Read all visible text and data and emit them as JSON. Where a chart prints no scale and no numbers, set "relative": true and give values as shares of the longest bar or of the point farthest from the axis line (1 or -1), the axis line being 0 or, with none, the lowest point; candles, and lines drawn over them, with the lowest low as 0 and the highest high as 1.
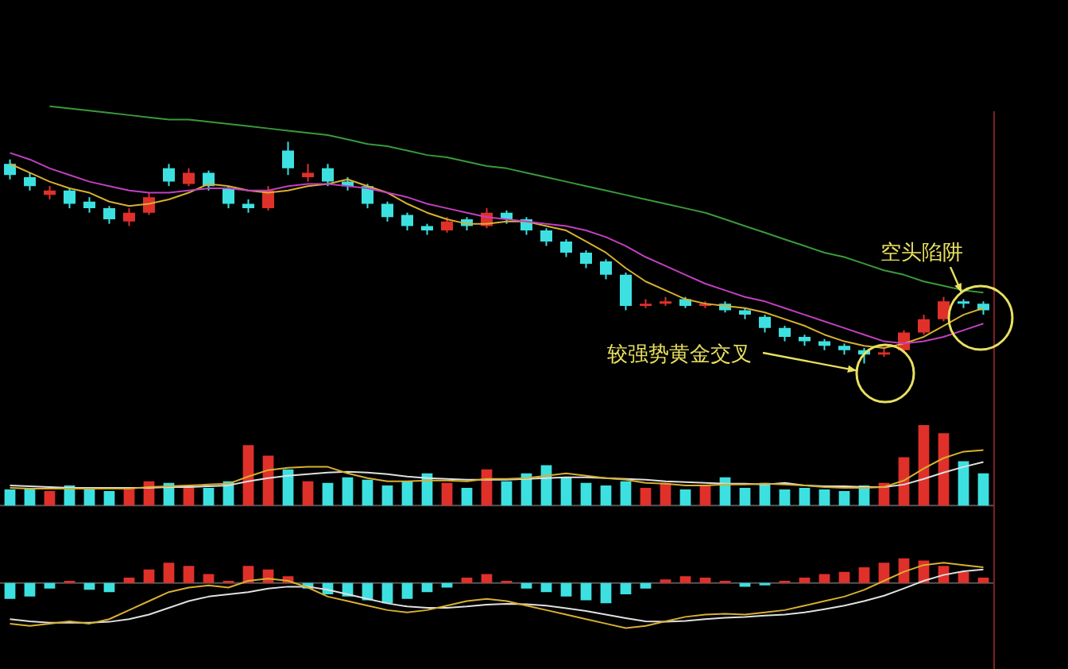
{
  "chart_data": [
    {
      "type": "candlestick",
      "relative": true,
      "legend": false,
      "categories": [
        null,
        null,
        null,
        null,
        null,
        null,
        null,
        null,
        null,
        null,
        null,
        null,
        null,
        null,
        null,
        null,
        null,
        null,
        null,
        null,
        null,
        null,
        null,
        null,
        null,
        null,
        null,
        null,
        null,
        null,
        null,
        null,
        null,
        null,
        null,
        null,
        null,
        null,
        null,
        null,
        null,
        null,
        null,
        null,
        null,
        null,
        null,
        null,
        null,
        null
      ],
      "ohlc": [
        [
          0.9,
          0.92,
          0.83,
          0.85
        ],
        [
          0.84,
          0.86,
          0.78,
          0.8
        ],
        [
          0.76,
          0.8,
          0.74,
          0.78
        ],
        [
          0.78,
          0.79,
          0.7,
          0.72
        ],
        [
          0.73,
          0.75,
          0.68,
          0.7
        ],
        [
          0.7,
          0.71,
          0.63,
          0.65
        ],
        [
          0.64,
          0.7,
          0.62,
          0.68
        ],
        [
          0.68,
          0.77,
          0.67,
          0.75
        ],
        [
          0.88,
          0.9,
          0.8,
          0.82
        ],
        [
          0.81,
          0.88,
          0.8,
          0.86
        ],
        [
          0.86,
          0.87,
          0.78,
          0.8
        ],
        [
          0.79,
          0.8,
          0.7,
          0.72
        ],
        [
          0.72,
          0.74,
          0.68,
          0.7
        ],
        [
          0.7,
          0.8,
          0.69,
          0.78
        ],
        [
          0.96,
          1.0,
          0.85,
          0.88
        ],
        [
          0.84,
          0.9,
          0.82,
          0.86
        ],
        [
          0.88,
          0.9,
          0.8,
          0.82
        ],
        [
          0.82,
          0.84,
          0.78,
          0.8
        ],
        [
          0.8,
          0.81,
          0.7,
          0.72
        ],
        [
          0.72,
          0.73,
          0.64,
          0.66
        ],
        [
          0.67,
          0.68,
          0.6,
          0.62
        ],
        [
          0.62,
          0.63,
          0.58,
          0.6
        ],
        [
          0.6,
          0.66,
          0.59,
          0.64
        ],
        [
          0.65,
          0.66,
          0.6,
          0.62
        ],
        [
          0.62,
          0.7,
          0.61,
          0.68
        ],
        [
          0.68,
          0.69,
          0.63,
          0.65
        ],
        [
          0.65,
          0.66,
          0.58,
          0.6
        ],
        [
          0.6,
          0.61,
          0.53,
          0.55
        ],
        [
          0.55,
          0.56,
          0.48,
          0.5
        ],
        [
          0.5,
          0.51,
          0.43,
          0.45
        ],
        [
          0.46,
          0.47,
          0.38,
          0.4
        ],
        [
          0.4,
          0.41,
          0.24,
          0.26
        ],
        [
          0.26,
          0.29,
          0.25,
          0.27
        ],
        [
          0.27,
          0.3,
          0.26,
          0.28
        ],
        [
          0.29,
          0.3,
          0.25,
          0.26
        ],
        [
          0.26,
          0.28,
          0.25,
          0.27
        ],
        [
          0.27,
          0.28,
          0.23,
          0.24
        ],
        [
          0.24,
          0.25,
          0.2,
          0.22
        ],
        [
          0.21,
          0.22,
          0.14,
          0.16
        ],
        [
          0.16,
          0.17,
          0.1,
          0.12
        ],
        [
          0.12,
          0.13,
          0.08,
          0.1
        ],
        [
          0.1,
          0.11,
          0.06,
          0.08
        ],
        [
          0.08,
          0.09,
          0.04,
          0.06
        ],
        [
          0.06,
          0.07,
          0.0,
          0.04
        ],
        [
          0.04,
          0.07,
          0.03,
          0.05
        ],
        [
          0.06,
          0.15,
          0.05,
          0.14
        ],
        [
          0.14,
          0.22,
          0.13,
          0.2
        ],
        [
          0.2,
          0.3,
          0.19,
          0.28
        ],
        [
          0.28,
          0.29,
          0.25,
          0.27
        ],
        [
          0.27,
          0.28,
          0.22,
          0.24
        ]
      ],
      "colors": [
        "#3de0e0",
        "#3de0e0",
        "#e0302a",
        "#3de0e0",
        "#3de0e0",
        "#3de0e0",
        "#e0302a",
        "#e0302a",
        "#3de0e0",
        "#e0302a",
        "#3de0e0",
        "#3de0e0",
        "#3de0e0",
        "#e0302a",
        "#3de0e0",
        "#e0302a",
        "#3de0e0",
        "#3de0e0",
        "#3de0e0",
        "#3de0e0",
        "#3de0e0",
        "#3de0e0",
        "#e0302a",
        "#3de0e0",
        "#e0302a",
        "#3de0e0",
        "#3de0e0",
        "#3de0e0",
        "#3de0e0",
        "#3de0e0",
        "#3de0e0",
        "#3de0e0",
        "#e0302a",
        "#e0302a",
        "#3de0e0",
        "#e0302a",
        "#3de0e0",
        "#3de0e0",
        "#3de0e0",
        "#3de0e0",
        "#3de0e0",
        "#3de0e0",
        "#3de0e0",
        "#3de0e0",
        "#e0302a",
        "#e0302a",
        "#e0302a",
        "#e0302a",
        "#3de0e0",
        "#3de0e0"
      ],
      "series": [
        {
          "type": "line",
          "color": "#3a9a3a",
          "values": [
            null,
            null,
            1.16,
            1.15,
            1.14,
            1.13,
            1.12,
            1.11,
            1.1,
            1.1,
            1.09,
            1.08,
            1.07,
            1.06,
            1.05,
            1.04,
            1.03,
            1.01,
            0.99,
            0.98,
            0.96,
            0.94,
            0.93,
            0.91,
            0.89,
            0.88,
            0.86,
            0.84,
            0.82,
            0.8,
            0.78,
            0.76,
            0.74,
            0.72,
            0.7,
            0.68,
            0.65,
            0.62,
            0.59,
            0.56,
            0.53,
            0.5,
            0.48,
            0.45,
            0.42,
            0.4,
            0.37,
            0.35,
            0.33,
            0.32
          ]
        },
        {
          "type": "line",
          "color": "#c040c0",
          "values": [
            0.95,
            0.92,
            0.88,
            0.85,
            0.82,
            0.8,
            0.78,
            0.77,
            0.77,
            0.78,
            0.79,
            0.79,
            0.78,
            0.78,
            0.8,
            0.81,
            0.81,
            0.8,
            0.79,
            0.77,
            0.75,
            0.72,
            0.7,
            0.68,
            0.66,
            0.65,
            0.64,
            0.63,
            0.62,
            0.6,
            0.57,
            0.53,
            0.48,
            0.44,
            0.4,
            0.36,
            0.33,
            0.3,
            0.28,
            0.25,
            0.22,
            0.19,
            0.16,
            0.13,
            0.1,
            0.09,
            0.1,
            0.12,
            0.15,
            0.18
          ]
        },
        {
          "type": "line",
          "color": "#d8b030",
          "values": [
            0.9,
            0.86,
            0.82,
            0.79,
            0.77,
            0.73,
            0.71,
            0.72,
            0.74,
            0.77,
            0.81,
            0.8,
            0.78,
            0.77,
            0.78,
            0.8,
            0.81,
            0.83,
            0.8,
            0.77,
            0.72,
            0.68,
            0.65,
            0.63,
            0.63,
            0.64,
            0.64,
            0.62,
            0.6,
            0.55,
            0.5,
            0.43,
            0.37,
            0.33,
            0.29,
            0.27,
            0.26,
            0.25,
            0.23,
            0.2,
            0.17,
            0.13,
            0.1,
            0.08,
            0.07,
            0.09,
            0.12,
            0.17,
            0.22,
            0.25
          ]
        }
      ],
      "annotations": [
        "较强势黄金交叉",
        "空头陷阱"
      ]
    },
    {
      "type": "bar",
      "relative": true,
      "legend": false,
      "categories": [
        null,
        null,
        null,
        null,
        null,
        null,
        null,
        null,
        null,
        null,
        null,
        null,
        null,
        null,
        null,
        null,
        null,
        null,
        null,
        null,
        null,
        null,
        null,
        null,
        null,
        null,
        null,
        null,
        null,
        null,
        null,
        null,
        null,
        null,
        null,
        null,
        null,
        null,
        null,
        null,
        null,
        null,
        null,
        null,
        null,
        null,
        null,
        null,
        null,
        null
      ],
      "values": [
        0.2,
        0.22,
        0.18,
        0.25,
        0.2,
        0.18,
        0.22,
        0.3,
        0.28,
        0.25,
        0.22,
        0.3,
        0.75,
        0.62,
        0.45,
        0.3,
        0.28,
        0.35,
        0.32,
        0.25,
        0.3,
        0.4,
        0.28,
        0.22,
        0.45,
        0.3,
        0.4,
        0.5,
        0.35,
        0.28,
        0.25,
        0.3,
        0.22,
        0.28,
        0.2,
        0.25,
        0.35,
        0.22,
        0.28,
        0.2,
        0.22,
        0.2,
        0.18,
        0.25,
        0.28,
        0.6,
        1.0,
        0.9,
        0.55,
        0.4
      ],
      "colors": [
        "#3de0e0",
        "#3de0e0",
        "#e0302a",
        "#3de0e0",
        "#3de0e0",
        "#3de0e0",
        "#e0302a",
        "#e0302a",
        "#3de0e0",
        "#e0302a",
        "#3de0e0",
        "#3de0e0",
        "#e0302a",
        "#e0302a",
        "#3de0e0",
        "#e0302a",
        "#3de0e0",
        "#3de0e0",
        "#3de0e0",
        "#3de0e0",
        "#3de0e0",
        "#3de0e0",
        "#e0302a",
        "#3de0e0",
        "#e0302a",
        "#3de0e0",
        "#3de0e0",
        "#3de0e0",
        "#3de0e0",
        "#3de0e0",
        "#3de0e0",
        "#3de0e0",
        "#e0302a",
        "#e0302a",
        "#3de0e0",
        "#e0302a",
        "#3de0e0",
        "#3de0e0",
        "#3de0e0",
        "#3de0e0",
        "#3de0e0",
        "#3de0e0",
        "#3de0e0",
        "#3de0e0",
        "#e0302a",
        "#e0302a",
        "#e0302a",
        "#e0302a",
        "#3de0e0",
        "#3de0e0"
      ],
      "series": [
        {
          "type": "line",
          "color": "#d8b030",
          "values": [
            0.22,
            0.21,
            0.21,
            0.21,
            0.21,
            0.21,
            0.21,
            0.23,
            0.24,
            0.25,
            0.26,
            0.27,
            0.36,
            0.44,
            0.47,
            0.48,
            0.48,
            0.4,
            0.34,
            0.3,
            0.3,
            0.31,
            0.31,
            0.3,
            0.33,
            0.33,
            0.34,
            0.37,
            0.4,
            0.37,
            0.34,
            0.32,
            0.28,
            0.27,
            0.25,
            0.25,
            0.26,
            0.26,
            0.27,
            0.26,
            0.25,
            0.23,
            0.22,
            0.22,
            0.23,
            0.31,
            0.46,
            0.59,
            0.67,
            0.69
          ]
        },
        {
          "type": "line",
          "color": "#e0e0e0",
          "values": [
            0.25,
            0.24,
            0.23,
            0.22,
            0.22,
            0.22,
            0.22,
            0.22,
            0.23,
            0.23,
            0.24,
            0.25,
            0.3,
            0.34,
            0.37,
            0.39,
            0.41,
            0.42,
            0.41,
            0.39,
            0.36,
            0.34,
            0.33,
            0.32,
            0.32,
            0.32,
            0.33,
            0.34,
            0.35,
            0.35,
            0.34,
            0.33,
            0.32,
            0.3,
            0.29,
            0.28,
            0.27,
            0.27,
            0.26,
            0.28,
            0.25,
            0.24,
            0.24,
            0.23,
            0.23,
            0.26,
            0.33,
            0.41,
            0.48,
            0.54
          ]
        }
      ]
    },
    {
      "type": "bar",
      "relative": true,
      "legend": false,
      "categories": [
        null,
        null,
        null,
        null,
        null,
        null,
        null,
        null,
        null,
        null,
        null,
        null,
        null,
        null,
        null,
        null,
        null,
        null,
        null,
        null,
        null,
        null,
        null,
        null,
        null,
        null,
        null,
        null,
        null,
        null,
        null,
        null,
        null,
        null,
        null,
        null,
        null,
        null,
        null,
        null,
        null,
        null,
        null,
        null,
        null,
        null,
        null,
        null,
        null,
        null
      ],
      "values": [
        -0.35,
        -0.3,
        -0.12,
        0.05,
        -0.15,
        -0.2,
        0.12,
        0.3,
        0.45,
        0.38,
        0.2,
        0.05,
        0.38,
        0.3,
        0.15,
        -0.12,
        -0.25,
        -0.3,
        -0.38,
        -0.45,
        -0.35,
        -0.2,
        -0.1,
        0.12,
        0.2,
        0.05,
        -0.12,
        -0.2,
        -0.3,
        -0.38,
        -0.45,
        -0.25,
        -0.12,
        0.08,
        0.15,
        0.12,
        0.05,
        -0.08,
        -0.05,
        0.05,
        0.12,
        0.2,
        0.25,
        0.35,
        0.45,
        0.55,
        0.5,
        0.38,
        0.25,
        0.12
      ],
      "colors": [
        "#3de0e0",
        "#3de0e0",
        "#3de0e0",
        "#e0302a",
        "#3de0e0",
        "#3de0e0",
        "#e0302a",
        "#e0302a",
        "#e0302a",
        "#e0302a",
        "#e0302a",
        "#e0302a",
        "#e0302a",
        "#e0302a",
        "#e0302a",
        "#3de0e0",
        "#3de0e0",
        "#3de0e0",
        "#3de0e0",
        "#3de0e0",
        "#3de0e0",
        "#3de0e0",
        "#3de0e0",
        "#e0302a",
        "#e0302a",
        "#e0302a",
        "#3de0e0",
        "#3de0e0",
        "#3de0e0",
        "#3de0e0",
        "#3de0e0",
        "#3de0e0",
        "#3de0e0",
        "#e0302a",
        "#e0302a",
        "#e0302a",
        "#e0302a",
        "#3de0e0",
        "#3de0e0",
        "#e0302a",
        "#e0302a",
        "#e0302a",
        "#e0302a",
        "#e0302a",
        "#e0302a",
        "#e0302a",
        "#e0302a",
        "#e0302a",
        "#e0302a",
        "#e0302a"
      ],
      "series": [
        {
          "type": "line",
          "color": "#d8b030",
          "values": [
            -0.9,
            -0.95,
            -0.9,
            -0.85,
            -0.9,
            -0.8,
            -0.6,
            -0.4,
            -0.2,
            -0.1,
            -0.05,
            -0.1,
            0.05,
            0.1,
            0.05,
            -0.1,
            -0.3,
            -0.4,
            -0.5,
            -0.6,
            -0.65,
            -0.6,
            -0.5,
            -0.4,
            -0.35,
            -0.4,
            -0.5,
            -0.6,
            -0.7,
            -0.8,
            -0.9,
            -1.0,
            -0.95,
            -0.85,
            -0.75,
            -0.7,
            -0.68,
            -0.7,
            -0.65,
            -0.6,
            -0.5,
            -0.4,
            -0.3,
            -0.15,
            0.05,
            0.25,
            0.4,
            0.45,
            0.4,
            0.35
          ]
        },
        {
          "type": "line",
          "color": "#e0e0e0",
          "values": [
            -0.8,
            -0.85,
            -0.88,
            -0.88,
            -0.88,
            -0.86,
            -0.8,
            -0.7,
            -0.55,
            -0.4,
            -0.3,
            -0.25,
            -0.2,
            -0.12,
            -0.08,
            -0.08,
            -0.15,
            -0.25,
            -0.35,
            -0.45,
            -0.52,
            -0.55,
            -0.55,
            -0.52,
            -0.48,
            -0.46,
            -0.47,
            -0.5,
            -0.56,
            -0.62,
            -0.7,
            -0.78,
            -0.85,
            -0.86,
            -0.84,
            -0.8,
            -0.77,
            -0.75,
            -0.72,
            -0.7,
            -0.65,
            -0.58,
            -0.5,
            -0.4,
            -0.28,
            -0.12,
            0.05,
            0.18,
            0.26,
            0.3
          ]
        }
      ]
    }
  ]
}
